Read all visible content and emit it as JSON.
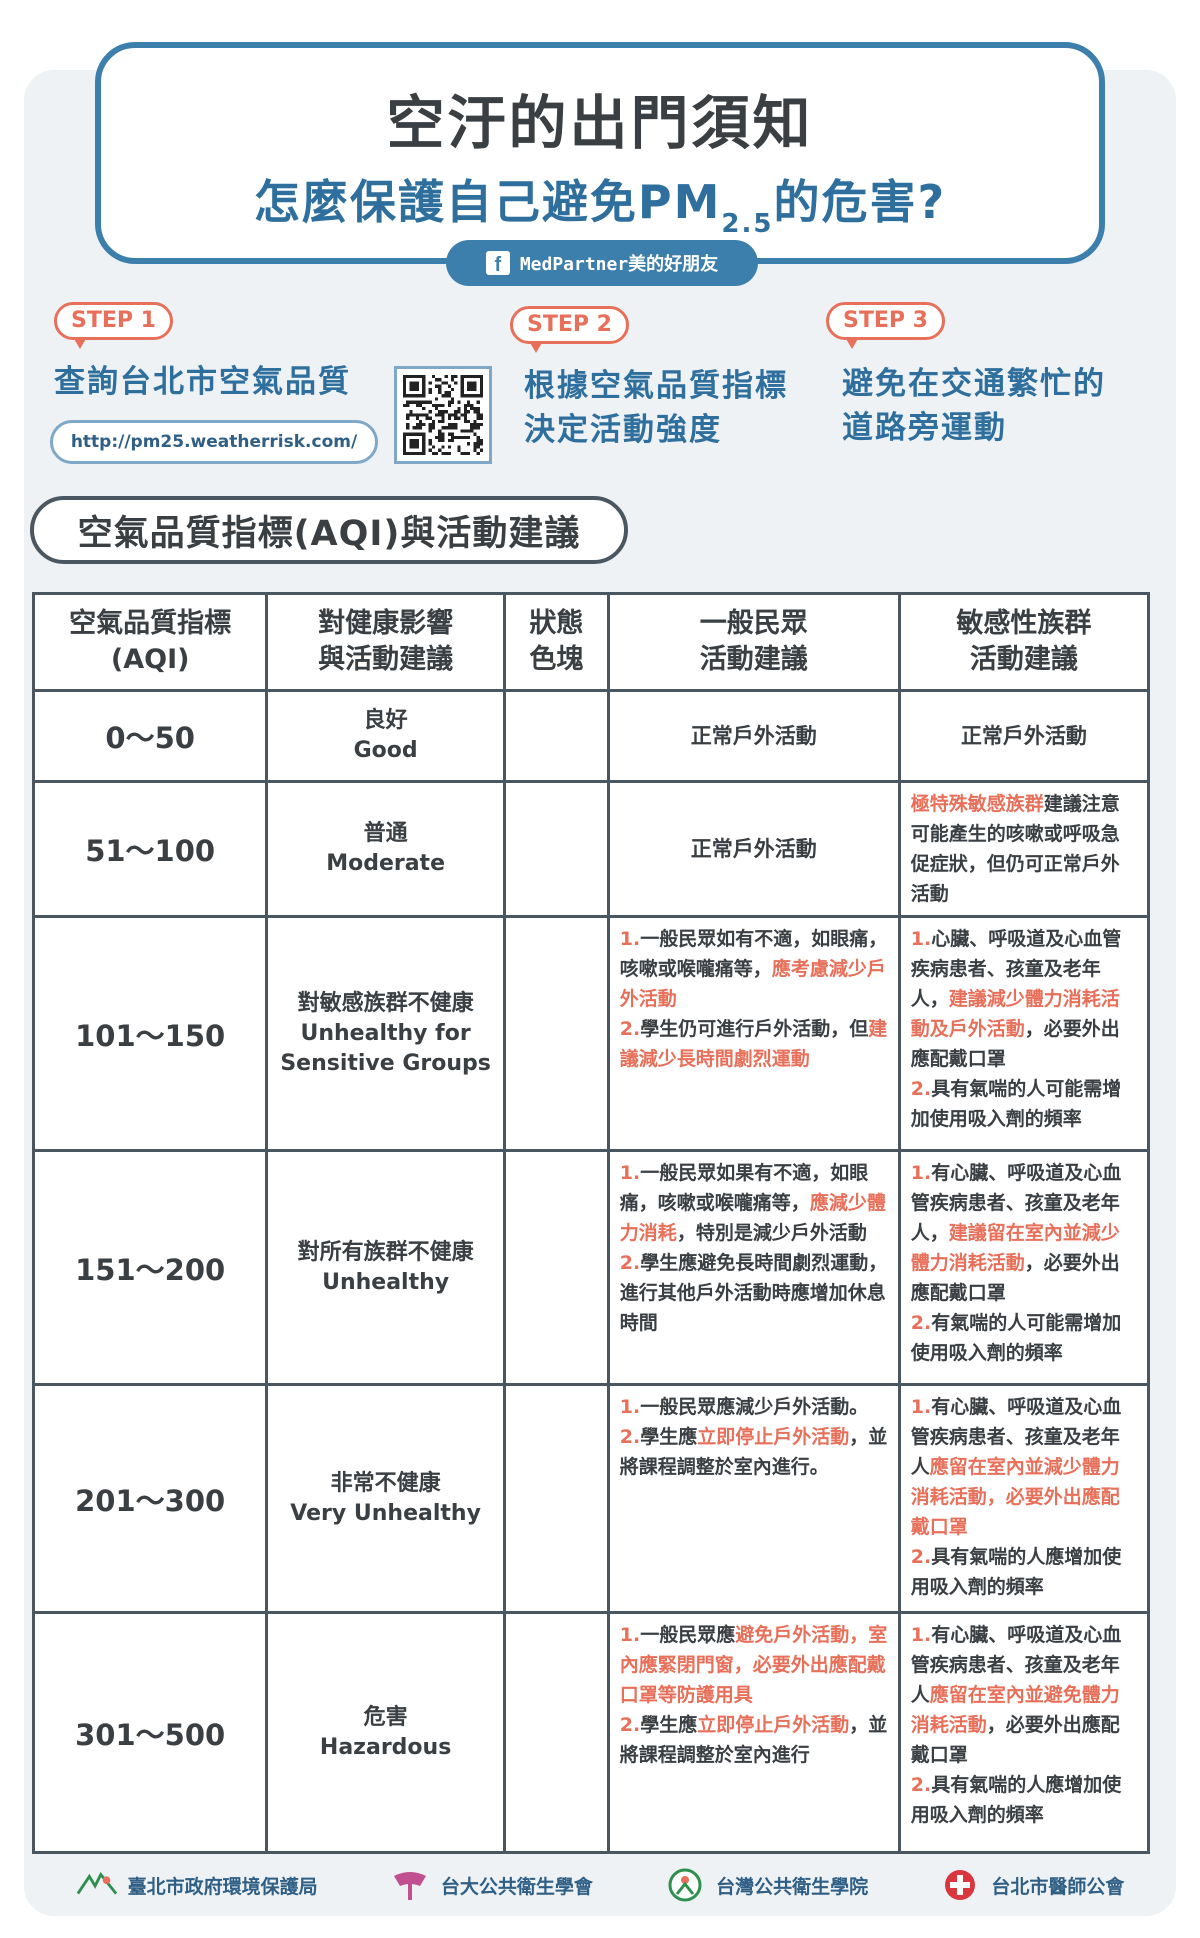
{
  "header": {
    "title_line1": "空汙的出門須知",
    "title_line2_pre": "怎麼保護自己避免PM",
    "title_line2_sub": "2.5",
    "title_line2_post": "的危害?",
    "fb_label": "MedPartner美的好朋友"
  },
  "steps": [
    {
      "badge": "STEP 1",
      "text": "查詢台北市空氣品質"
    },
    {
      "badge": "STEP 2",
      "text_line1": "根據空氣品質指標",
      "text_line2": "決定活動強度"
    },
    {
      "badge": "STEP 3",
      "text_line1": "避免在交通繁忙的",
      "text_line2": "道路旁運動"
    }
  ],
  "url": "http://pm25.weatherrisk.com/",
  "section_title": "空氣品質指標(AQI)與活動建議",
  "table": {
    "headers": {
      "aqi_l1": "空氣品質指標",
      "aqi_l2": "(AQI)",
      "health_l1": "對健康影響",
      "health_l2": "與活動建議",
      "color_l1": "狀態",
      "color_l2": "色塊",
      "general_l1": "一般民眾",
      "general_l2": "活動建議",
      "sensitive_l1": "敏感性族群",
      "sensitive_l2": "活動建議"
    },
    "rows": [
      {
        "range": "0～50",
        "status_zh": "良好",
        "status_en": "Good",
        "color": "#94c36f",
        "general": "正常戶外活動",
        "sensitive": "正常戶外活動"
      },
      {
        "range": "51～100",
        "status_zh": "普通",
        "status_en": "Moderate",
        "color": "#f5d862",
        "general": "正常戶外活動",
        "sensitive_hl": "極特殊敏感族群",
        "sensitive_rest": "建議注意可能產生的咳嗽或呼吸急促症狀，但仍可正常戶外活動"
      },
      {
        "range": "101～150",
        "status_zh": "對敏感族群不健康",
        "status_en_l1": "Unhealthy for",
        "status_en_l2": "Sensitive Groups",
        "color": "#ef8155",
        "g1_a": "一般民眾如有不適，如眼痛，咳嗽或喉嚨痛等，",
        "g1_hl": "應考慮減少戶外活動",
        "g2_a": "學生仍可進行戶外活動，但",
        "g2_hl": "建議減少長時間劇烈運動",
        "s1_a": "心臟、呼吸道及心血管疾病患者、孩童及老年人，",
        "s1_hl": "建議減少體力消耗活動及戶外活動",
        "s1_b": "，必要外出應配戴口罩",
        "s2_a": "具有氣喘的人可能需增加使用吸入劑的頻率"
      },
      {
        "range": "151～200",
        "status_zh": "對所有族群不健康",
        "status_en": "Unhealthy",
        "color": "#de4d5c",
        "g1_a": "一般民眾如果有不適，如眼痛，咳嗽或喉嚨痛等，",
        "g1_hl": "應減少體力消耗",
        "g1_b": "，特別是減少戶外活動",
        "g2_a": "學生應避免長時間劇烈運動，進行其他戶外活動時應增加休息時間",
        "s1_a": "有心臟、呼吸道及心血管疾病患者、孩童及老年人，",
        "s1_hl": "建議留在室內並減少體力消耗活動",
        "s1_b": "，必要外出應配戴口罩",
        "s2_a": "有氣喘的人可能需增加使用吸入劑的頻率"
      },
      {
        "range": "201～300",
        "status_zh": "非常不健康",
        "status_en": "Very Unhealthy",
        "color": "#a660b1",
        "g1_a": "一般民眾應減少戶外活動。",
        "g2_a": "學生應",
        "g2_hl": "立即停止戶外活動",
        "g2_b": "，並將課程調整於室內進行。",
        "s1_a": "有心臟、呼吸道及心血管疾病患者、孩童及老年人",
        "s1_hl": "應留在室內並減少體力消耗活動，必要外出應配戴口罩",
        "s2_a": "具有氣喘的人應增加使用吸入劑的頻率"
      },
      {
        "range": "301～500",
        "status_zh": "危害",
        "status_en": "Hazardous",
        "color": "#8a3421",
        "g1_a": "一般民眾應",
        "g1_hl": "避免戶外活動，室內應緊閉門窗，必要外出應配戴口罩等防護用具",
        "g2_a": "學生應",
        "g2_hl": "立即停止戶外活動",
        "g2_b": "，並將課程調整於室內進行",
        "s1_a": "有心臟、呼吸道及心血管疾病患者、孩童及老年人",
        "s1_hl": "應留在室內並避免體力消耗活動",
        "s1_b": "，必要外出應配戴口罩",
        "s2_a": "具有氣喘的人應增加使用吸入劑的頻率"
      }
    ]
  },
  "footer": [
    {
      "label": "臺北市政府環境保護局",
      "icon": "epb-logo-icon"
    },
    {
      "label": "台大公共衛生學會",
      "icon": "ntu-ph-logo-icon"
    },
    {
      "label": "台灣公共衛生學院",
      "icon": "ph-college-logo-icon"
    },
    {
      "label": "台北市醫師公會",
      "icon": "medical-assoc-logo-icon"
    }
  ],
  "colors": {
    "accent_blue": "#3d7fac",
    "accent_orange": "#e8705a",
    "border": "#4a5660"
  }
}
